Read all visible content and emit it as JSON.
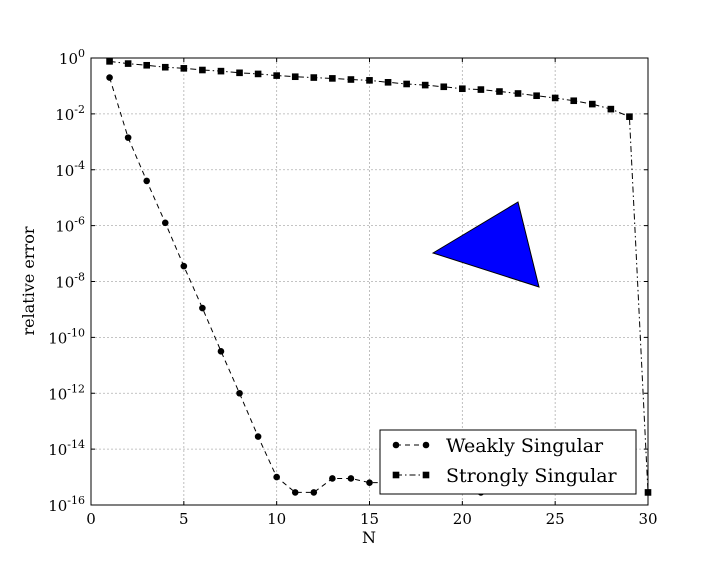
{
  "chart_data": {
    "type": "line",
    "title": "",
    "xlabel": "N",
    "ylabel": "relative error",
    "xlim": [
      0,
      30
    ],
    "ylim_log10": [
      -16,
      0
    ],
    "yscale": "log",
    "grid": true,
    "legend_position": "lower-right",
    "x_ticks": [
      0,
      5,
      10,
      15,
      20,
      25,
      30
    ],
    "y_ticks": [
      {
        "base": "10",
        "exp": "0",
        "log": 0
      },
      {
        "base": "10",
        "exp": "-2",
        "log": -2
      },
      {
        "base": "10",
        "exp": "-4",
        "log": -4
      },
      {
        "base": "10",
        "exp": "-6",
        "log": -6
      },
      {
        "base": "10",
        "exp": "-8",
        "log": -8
      },
      {
        "base": "10",
        "exp": "-10",
        "log": -10
      },
      {
        "base": "10",
        "exp": "-12",
        "log": -12
      },
      {
        "base": "10",
        "exp": "-14",
        "log": -14
      },
      {
        "base": "10",
        "exp": "-16",
        "log": -16
      }
    ],
    "series": [
      {
        "name": "Weakly Singular",
        "marker": "circle",
        "line_style": "dashed",
        "x": [
          1,
          2,
          3,
          4,
          5,
          6,
          7,
          8,
          9,
          10,
          11,
          12,
          13,
          14,
          15,
          16,
          17,
          18,
          19,
          20,
          21,
          22
        ],
        "log10_y": [
          -0.7,
          -2.85,
          -4.4,
          -5.9,
          -7.45,
          -8.95,
          -10.5,
          -12.0,
          -13.55,
          -15.0,
          -15.55,
          -15.55,
          -15.05,
          -15.05,
          -15.2,
          -15.2,
          -15.3,
          -15.3,
          -15.4,
          -15.4,
          -15.55,
          -15.5
        ]
      },
      {
        "name": "Strongly Singular",
        "marker": "square",
        "line_style": "dashdot",
        "x": [
          1,
          2,
          3,
          4,
          5,
          6,
          7,
          8,
          9,
          10,
          11,
          12,
          13,
          14,
          15,
          16,
          17,
          18,
          19,
          20,
          21,
          22,
          23,
          24,
          25,
          26,
          27,
          28,
          29,
          30
        ],
        "log10_y": [
          -0.12,
          -0.2,
          -0.26,
          -0.33,
          -0.37,
          -0.43,
          -0.47,
          -0.53,
          -0.57,
          -0.63,
          -0.67,
          -0.7,
          -0.73,
          -0.77,
          -0.8,
          -0.87,
          -0.93,
          -0.97,
          -1.03,
          -1.1,
          -1.13,
          -1.2,
          -1.27,
          -1.35,
          -1.43,
          -1.53,
          -1.65,
          -1.83,
          -2.1,
          -15.55
        ]
      }
    ],
    "inset_shape": {
      "type": "triangle",
      "color": "#0000ff",
      "stroke": "#000000"
    }
  }
}
